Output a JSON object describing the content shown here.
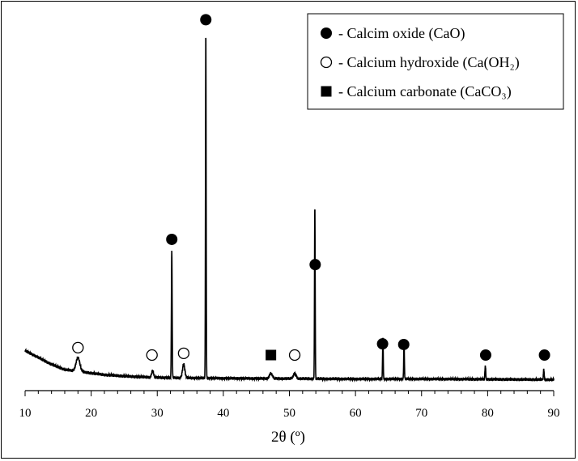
{
  "chart_data": {
    "type": "line",
    "xlabel": "2θ (º)",
    "ylabel": "",
    "xlim": [
      10,
      90
    ],
    "xticks": [
      10,
      20,
      30,
      40,
      50,
      60,
      70,
      80,
      90
    ],
    "grid": false,
    "legend_position": "top-right",
    "legend": [
      {
        "marker": "filled-circle",
        "text": "- Calcim oxide (CaO)"
      },
      {
        "marker": "open-circle",
        "text": "- Calcium hydroxide (Ca(OH₂)"
      },
      {
        "marker": "filled-square",
        "text": "- Calcium carbonate (CaCO₃)"
      }
    ],
    "series": [
      {
        "baseline": [
          [
            10,
            0.09
          ],
          [
            12,
            0.07
          ],
          [
            14,
            0.05
          ],
          [
            16,
            0.035
          ],
          [
            18,
            0.03
          ],
          [
            22,
            0.02
          ],
          [
            26,
            0.015
          ],
          [
            30,
            0.012
          ],
          [
            40,
            0.01
          ],
          [
            50,
            0.009
          ],
          [
            60,
            0.008
          ],
          [
            70,
            0.008
          ],
          [
            80,
            0.007
          ],
          [
            90,
            0.006
          ]
        ],
        "peaks": [
          {
            "x": 18.0,
            "y": 0.04,
            "width": 0.4
          },
          {
            "x": 29.3,
            "y": 0.02,
            "width": 0.2
          },
          {
            "x": 32.2,
            "y": 0.37,
            "width": 0.08
          },
          {
            "x": 34.0,
            "y": 0.04,
            "width": 0.25
          },
          {
            "x": 37.35,
            "y": 1.0,
            "width": 0.07
          },
          {
            "x": 47.2,
            "y": 0.015,
            "width": 0.3
          },
          {
            "x": 50.8,
            "y": 0.015,
            "width": 0.3
          },
          {
            "x": 53.85,
            "y": 0.5,
            "width": 0.07
          },
          {
            "x": 64.15,
            "y": 0.12,
            "width": 0.07
          },
          {
            "x": 67.35,
            "y": 0.11,
            "width": 0.07
          },
          {
            "x": 79.65,
            "y": 0.04,
            "width": 0.08
          },
          {
            "x": 88.5,
            "y": 0.03,
            "width": 0.08
          }
        ]
      }
    ],
    "annotations": [
      {
        "marker": "open-circle",
        "x": 18.0
      },
      {
        "marker": "open-circle",
        "x": 29.2
      },
      {
        "marker": "filled-circle",
        "x": 32.2
      },
      {
        "marker": "open-circle",
        "x": 34.0
      },
      {
        "marker": "filled-circle",
        "x": 37.35
      },
      {
        "marker": "filled-square",
        "x": 47.2
      },
      {
        "marker": "open-circle",
        "x": 50.8
      },
      {
        "marker": "filled-circle",
        "x": 53.9
      },
      {
        "marker": "filled-circle",
        "x": 64.1
      },
      {
        "marker": "filled-circle",
        "x": 67.3
      },
      {
        "marker": "filled-circle",
        "x": 79.7
      },
      {
        "marker": "filled-circle",
        "x": 88.6
      }
    ]
  }
}
